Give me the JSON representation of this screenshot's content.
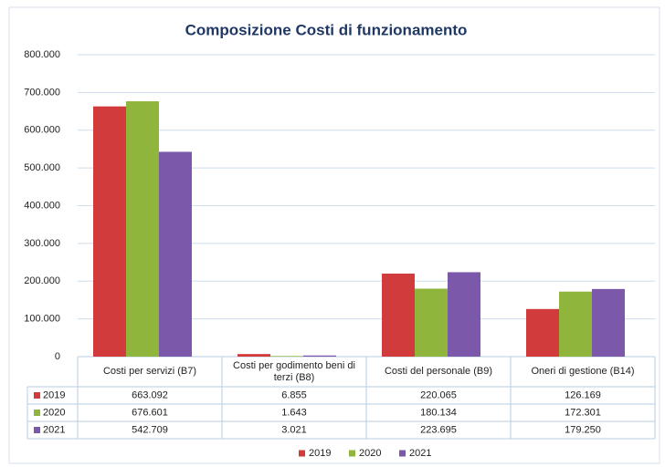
{
  "chart_data": {
    "type": "bar",
    "title": "Composizione Costi di funzionamento",
    "categories": [
      "Costi per servizi (B7)",
      "Costi per godimento beni di terzi (B8)",
      "Costi del personale (B9)",
      "Oneri di gestione (B14)"
    ],
    "series": [
      {
        "name": "2019",
        "color": "#d13b3b",
        "values": [
          663092,
          6855,
          220065,
          126169
        ],
        "value_labels": [
          "663.092",
          "6.855",
          "220.065",
          "126.169"
        ]
      },
      {
        "name": "2020",
        "color": "#8fb53c",
        "values": [
          676601,
          1643,
          180134,
          172301
        ],
        "value_labels": [
          "676.601",
          "1.643",
          "180.134",
          "172.301"
        ]
      },
      {
        "name": "2021",
        "color": "#7c58aa",
        "values": [
          542709,
          3021,
          223695,
          179250
        ],
        "value_labels": [
          "542.709",
          "3.021",
          "223.695",
          "179.250"
        ]
      }
    ],
    "ylim": [
      0,
      800000
    ],
    "yticks": [
      0,
      {
        "value": 100000,
        "label": "100.000"
      },
      {
        "value": 200000,
        "label": "200.000"
      },
      {
        "value": 300000,
        "label": "300.000"
      },
      {
        "value": 400000,
        "label": "400.000"
      },
      {
        "value": 500000,
        "label": "500.000"
      },
      {
        "value": 600000,
        "label": "600.000"
      },
      {
        "value": 700000,
        "label": "700.000"
      },
      {
        "value": 800000,
        "label": "800.000"
      }
    ],
    "grid": true,
    "legend": "bottom"
  }
}
